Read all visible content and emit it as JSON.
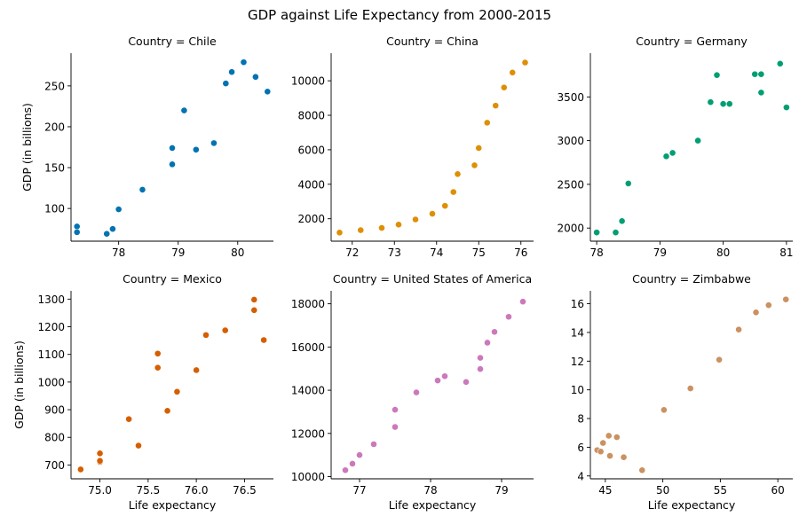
{
  "title": "GDP against Life Expectancy from 2000-2015",
  "chart_data": {
    "type": "scatter",
    "title": "GDP against Life Expectancy from 2000-2015",
    "xlabel": "Life expectancy",
    "ylabel": "GDP (in billions)",
    "grid": false,
    "legend": "none",
    "facet_prefix": "Country = ",
    "panels": [
      {
        "facet": "Chile",
        "color": "#0173b2",
        "xlim": [
          77.2,
          80.6
        ],
        "ylim": [
          60,
          290
        ],
        "xticks": [
          78,
          79,
          80
        ],
        "yticks": [
          100,
          150,
          200,
          250
        ],
        "points": [
          [
            77.3,
            78
          ],
          [
            77.3,
            71
          ],
          [
            77.8,
            69
          ],
          [
            77.9,
            75
          ],
          [
            78.0,
            99
          ],
          [
            78.4,
            123
          ],
          [
            78.9,
            174
          ],
          [
            78.9,
            154
          ],
          [
            79.1,
            220
          ],
          [
            79.3,
            172
          ],
          [
            79.6,
            180
          ],
          [
            79.8,
            253
          ],
          [
            79.9,
            267
          ],
          [
            80.1,
            279
          ],
          [
            80.3,
            261
          ],
          [
            80.5,
            243
          ]
        ]
      },
      {
        "facet": "China",
        "color": "#de8f05",
        "xlim": [
          71.5,
          76.3
        ],
        "ylim": [
          700,
          11600
        ],
        "xticks": [
          72,
          73,
          74,
          75,
          76
        ],
        "yticks": [
          2000,
          4000,
          6000,
          8000,
          10000
        ],
        "points": [
          [
            71.7,
            1200
          ],
          [
            72.2,
            1340
          ],
          [
            72.7,
            1470
          ],
          [
            73.1,
            1660
          ],
          [
            73.5,
            1960
          ],
          [
            73.9,
            2290
          ],
          [
            74.2,
            2750
          ],
          [
            74.4,
            3550
          ],
          [
            74.5,
            4590
          ],
          [
            74.9,
            5100
          ],
          [
            75.0,
            6100
          ],
          [
            75.2,
            7570
          ],
          [
            75.4,
            8560
          ],
          [
            75.6,
            9610
          ],
          [
            75.8,
            10480
          ],
          [
            76.1,
            11060
          ]
        ]
      },
      {
        "facet": "Germany",
        "color": "#029e73",
        "xlim": [
          77.9,
          81.1
        ],
        "ylim": [
          1850,
          4000
        ],
        "xticks": [
          78,
          79,
          80,
          81
        ],
        "yticks": [
          2000,
          2500,
          3000,
          3500
        ],
        "points": [
          [
            78.0,
            1950
          ],
          [
            78.3,
            1950
          ],
          [
            78.4,
            2080
          ],
          [
            78.5,
            2510
          ],
          [
            79.1,
            2820
          ],
          [
            79.2,
            2860
          ],
          [
            79.6,
            3000
          ],
          [
            79.8,
            3440
          ],
          [
            79.9,
            3750
          ],
          [
            80.0,
            3420
          ],
          [
            80.1,
            3420
          ],
          [
            80.5,
            3760
          ],
          [
            80.6,
            3760
          ],
          [
            80.6,
            3550
          ],
          [
            80.9,
            3880
          ],
          [
            81.0,
            3380
          ]
        ]
      },
      {
        "facet": "Mexico",
        "color": "#d55e00",
        "xlim": [
          74.7,
          76.8
        ],
        "ylim": [
          650,
          1330
        ],
        "xticks": [
          75.0,
          75.5,
          76.0,
          76.5
        ],
        "yticks": [
          700,
          800,
          900,
          1000,
          1100,
          1200,
          1300
        ],
        "points": [
          [
            74.8,
            684
          ],
          [
            75.0,
            742
          ],
          [
            75.0,
            711
          ],
          [
            75.3,
            866
          ],
          [
            75.4,
            770
          ],
          [
            75.6,
            1103
          ],
          [
            75.6,
            1052
          ],
          [
            75.7,
            896
          ],
          [
            75.8,
            965
          ],
          [
            76.0,
            1043
          ],
          [
            76.1,
            1170
          ],
          [
            76.3,
            1187
          ],
          [
            76.6,
            1298
          ],
          [
            76.6,
            1260
          ],
          [
            76.7,
            1152
          ],
          [
            75.0,
            715
          ]
        ]
      },
      {
        "facet": "United States of America",
        "color": "#cc78bc",
        "xlim": [
          76.6,
          79.45
        ],
        "ylim": [
          9900,
          18600
        ],
        "xticks": [
          77,
          78,
          79
        ],
        "yticks": [
          10000,
          12000,
          14000,
          16000,
          18000
        ],
        "points": [
          [
            76.8,
            10300
          ],
          [
            76.9,
            10600
          ],
          [
            77.0,
            11000
          ],
          [
            77.2,
            11500
          ],
          [
            77.5,
            12300
          ],
          [
            77.5,
            13100
          ],
          [
            77.8,
            13900
          ],
          [
            78.1,
            14450
          ],
          [
            78.2,
            14650
          ],
          [
            78.5,
            14380
          ],
          [
            78.7,
            14980
          ],
          [
            78.7,
            15500
          ],
          [
            78.8,
            16200
          ],
          [
            78.9,
            16700
          ],
          [
            79.1,
            17400
          ],
          [
            79.3,
            18100
          ]
        ]
      },
      {
        "facet": "Zimbabwe",
        "color": "#ca9161",
        "xlim": [
          43.7,
          61.3
        ],
        "ylim": [
          3.8,
          16.9
        ],
        "xticks": [
          45,
          50,
          55,
          60
        ],
        "yticks": [
          4,
          6,
          8,
          10,
          12,
          14,
          16
        ],
        "points": [
          [
            44.3,
            5.8
          ],
          [
            44.6,
            5.7
          ],
          [
            44.8,
            6.3
          ],
          [
            45.3,
            6.8
          ],
          [
            45.4,
            5.4
          ],
          [
            46.0,
            6.7
          ],
          [
            46.6,
            5.3
          ],
          [
            48.2,
            4.4
          ],
          [
            50.1,
            8.6
          ],
          [
            52.4,
            10.1
          ],
          [
            54.9,
            12.1
          ],
          [
            56.6,
            14.2
          ],
          [
            58.1,
            15.4
          ],
          [
            59.2,
            15.9
          ],
          [
            60.7,
            16.3
          ]
        ]
      }
    ]
  }
}
